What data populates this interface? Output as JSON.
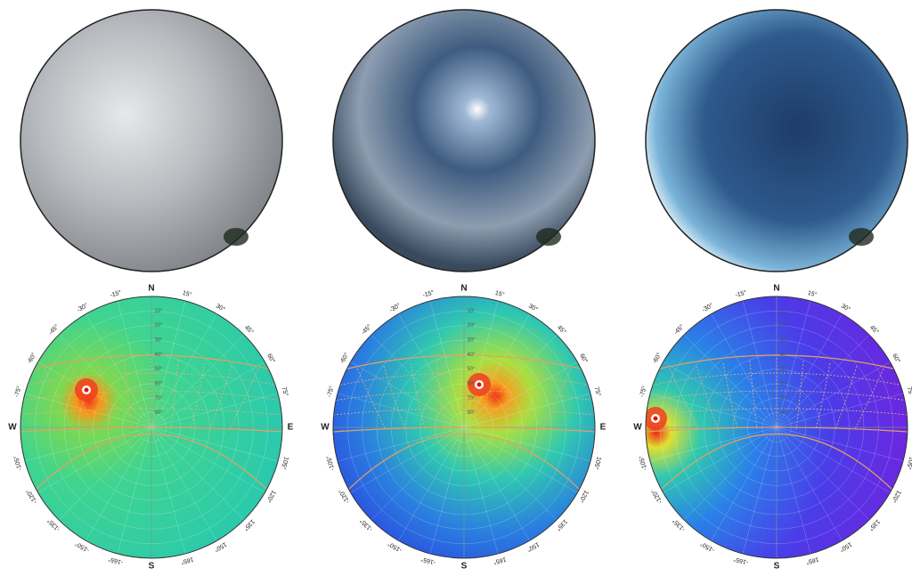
{
  "compass": {
    "north": "N",
    "east": "E",
    "south": "S",
    "west": "W"
  },
  "azimuth_labels_east": [
    "15°",
    "30°",
    "45°",
    "60°",
    "75°",
    "105°",
    "120°",
    "135°",
    "150°",
    "165°"
  ],
  "azimuth_labels_west": [
    "-15°",
    "-30°",
    "-45°",
    "-60°",
    "-75°",
    "-105°",
    "-120°",
    "-135°",
    "-150°",
    "-165°"
  ],
  "altitude_labels": [
    "10°",
    "20°",
    "30°",
    "40°",
    "50°",
    "60°",
    "70°",
    "80°"
  ]
}
